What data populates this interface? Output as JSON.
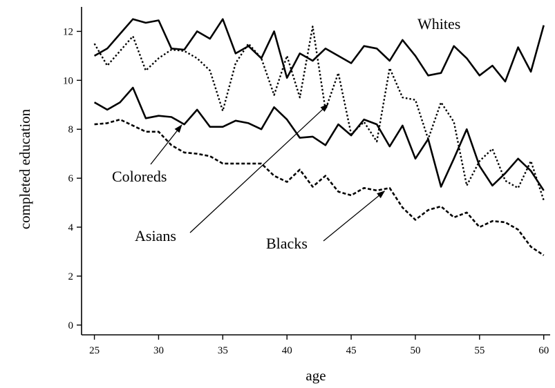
{
  "chart_data": {
    "type": "line",
    "xlabel": "age",
    "ylabel": "completed education",
    "xlim": [
      24,
      60.5
    ],
    "ylim": [
      -0.4,
      13
    ],
    "xticks": [
      25,
      30,
      35,
      40,
      45,
      50,
      55,
      60
    ],
    "yticks": [
      0,
      2,
      4,
      6,
      8,
      10,
      12
    ],
    "grid": false,
    "legend": "none (series labelled by annotations with arrows)",
    "x": [
      25,
      26,
      27,
      28,
      29,
      30,
      31,
      32,
      33,
      34,
      35,
      36,
      37,
      38,
      39,
      40,
      41,
      42,
      43,
      44,
      45,
      46,
      47,
      48,
      49,
      50,
      51,
      52,
      53,
      54,
      55,
      56,
      57,
      58,
      59,
      60
    ],
    "series": [
      {
        "name": "Whites",
        "style": "solid",
        "values": [
          11.0,
          11.3,
          11.9,
          12.5,
          12.35,
          12.45,
          11.3,
          11.25,
          12.0,
          11.7,
          12.5,
          11.1,
          11.4,
          10.9,
          12.0,
          10.1,
          11.1,
          10.8,
          11.3,
          11.0,
          10.7,
          11.4,
          11.3,
          10.8,
          11.65,
          11.0,
          10.2,
          10.3,
          11.4,
          10.9,
          10.2,
          10.6,
          9.95,
          11.35,
          10.35,
          12.25
        ]
      },
      {
        "name": "Asians",
        "style": "dotted",
        "values": [
          11.5,
          10.6,
          11.2,
          11.8,
          10.4,
          10.9,
          11.25,
          11.2,
          10.9,
          10.4,
          8.75,
          10.7,
          11.5,
          10.9,
          9.4,
          11.0,
          9.3,
          12.2,
          8.8,
          10.3,
          7.8,
          8.3,
          7.5,
          10.5,
          9.3,
          9.2,
          7.6,
          9.1,
          8.3,
          5.7,
          6.7,
          7.2,
          5.9,
          5.6,
          6.7,
          5.1
        ]
      },
      {
        "name": "Coloreds",
        "style": "solid",
        "values": [
          9.1,
          8.8,
          9.1,
          9.7,
          8.45,
          8.55,
          8.5,
          8.2,
          8.8,
          8.1,
          8.1,
          8.35,
          8.25,
          8.0,
          8.9,
          8.4,
          7.65,
          7.7,
          7.35,
          8.2,
          7.75,
          8.4,
          8.2,
          7.3,
          8.15,
          6.8,
          7.6,
          5.65,
          6.8,
          8.0,
          6.5,
          5.7,
          6.2,
          6.8,
          6.3,
          5.5
        ]
      },
      {
        "name": "Blacks",
        "style": "dashed",
        "values": [
          8.2,
          8.25,
          8.4,
          8.15,
          7.9,
          7.9,
          7.35,
          7.05,
          7.0,
          6.9,
          6.6,
          6.6,
          6.6,
          6.6,
          6.1,
          5.85,
          6.35,
          5.65,
          6.1,
          5.45,
          5.3,
          5.6,
          5.5,
          5.6,
          4.8,
          4.3,
          4.7,
          4.85,
          4.4,
          4.6,
          4.0,
          4.25,
          4.2,
          3.9,
          3.2,
          2.85
        ]
      }
    ],
    "annotations": [
      {
        "text": "Whites",
        "arrow": false
      },
      {
        "text": "Coloreds",
        "arrow": true,
        "points_to_series": "Coloreds",
        "arrow_target_x": 31.8
      },
      {
        "text": "Asians",
        "arrow": true,
        "points_to_series": "Asians",
        "arrow_target_x": 43.2
      },
      {
        "text": "Blacks",
        "arrow": true,
        "points_to_series": "Blacks",
        "arrow_target_x": 47.6
      }
    ],
    "color": "#000000"
  }
}
